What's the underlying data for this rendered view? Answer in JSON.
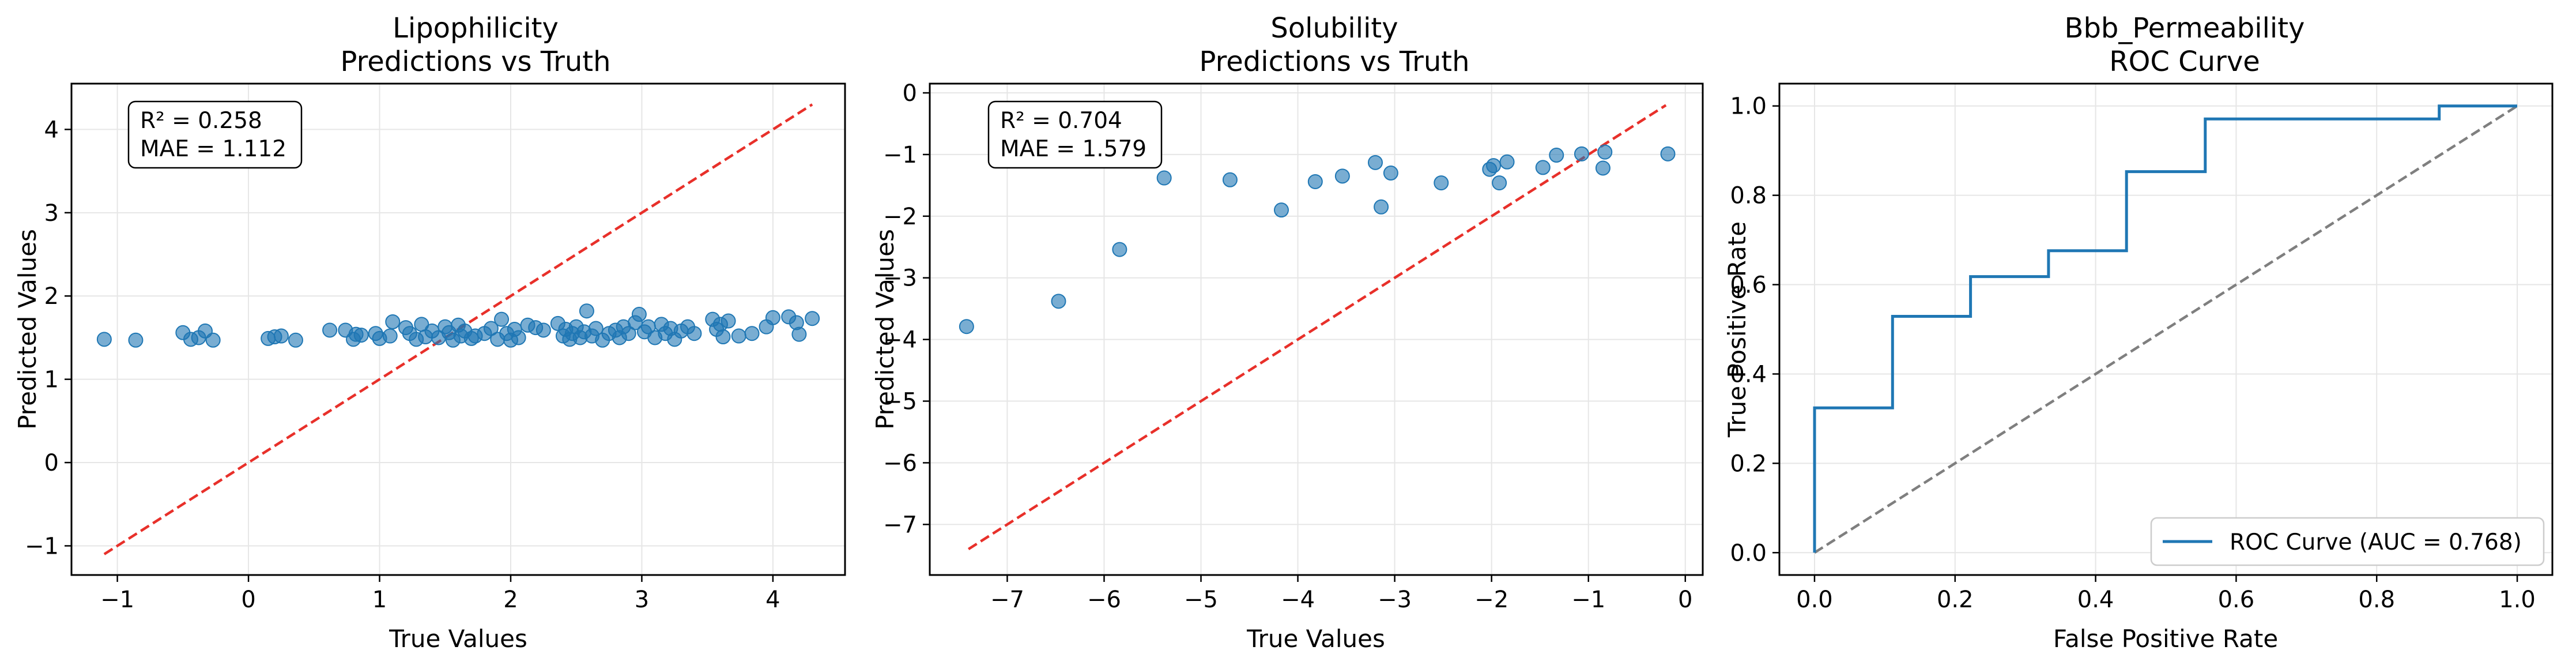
{
  "figure": {
    "panels": [
      {
        "title_line1": "Lipophilicity",
        "title_line2": "Predictions vs Truth",
        "xlabel": "True Values",
        "ylabel": "Predicted Values",
        "stats_line1": "R² = 0.258",
        "stats_line2": "MAE = 1.112"
      },
      {
        "title_line1": "Solubility",
        "title_line2": "Predictions vs Truth",
        "xlabel": "True Values",
        "ylabel": "Predicted Values",
        "stats_line1": "R² = 0.704",
        "stats_line2": "MAE = 1.579"
      },
      {
        "title_line1": "Bbb_Permeability",
        "title_line2": "ROC Curve",
        "xlabel": "False Positive Rate",
        "ylabel": "True Positive Rate",
        "legend_label": "ROC Curve (AUC = 0.768)"
      }
    ]
  },
  "colors": {
    "points": "#1f77b4",
    "identity_line": "#e8302a",
    "roc_line": "#1f77b4",
    "chance_line": "#7f7f7f",
    "grid": "#e6e6e6"
  },
  "chart_data": [
    {
      "type": "scatter",
      "title": "Lipophilicity\nPredictions vs Truth",
      "xlabel": "True Values",
      "ylabel": "Predicted Values",
      "xlim": [
        -1.35,
        4.55
      ],
      "ylim": [
        -1.35,
        4.55
      ],
      "xticks": [
        -1,
        0,
        1,
        2,
        3,
        4
      ],
      "yticks": [
        -1,
        0,
        1,
        2,
        3,
        4
      ],
      "grid": true,
      "annotation": "R² = 0.258\nMAE = 1.112",
      "identity_line": [
        [
          -1.1,
          -1.1
        ],
        [
          4.3,
          4.3
        ]
      ],
      "points": [
        [
          -1.1,
          1.48
        ],
        [
          -0.86,
          1.47
        ],
        [
          -0.5,
          1.56
        ],
        [
          -0.44,
          1.48
        ],
        [
          -0.38,
          1.5
        ],
        [
          -0.33,
          1.58
        ],
        [
          -0.27,
          1.47
        ],
        [
          0.15,
          1.49
        ],
        [
          0.2,
          1.51
        ],
        [
          0.25,
          1.52
        ],
        [
          0.36,
          1.47
        ],
        [
          0.62,
          1.59
        ],
        [
          0.74,
          1.59
        ],
        [
          0.8,
          1.48
        ],
        [
          0.82,
          1.54
        ],
        [
          0.86,
          1.53
        ],
        [
          0.97,
          1.55
        ],
        [
          1.0,
          1.49
        ],
        [
          1.08,
          1.52
        ],
        [
          1.1,
          1.69
        ],
        [
          1.2,
          1.62
        ],
        [
          1.23,
          1.55
        ],
        [
          1.28,
          1.48
        ],
        [
          1.32,
          1.66
        ],
        [
          1.35,
          1.51
        ],
        [
          1.4,
          1.58
        ],
        [
          1.45,
          1.5
        ],
        [
          1.5,
          1.63
        ],
        [
          1.53,
          1.56
        ],
        [
          1.56,
          1.47
        ],
        [
          1.6,
          1.65
        ],
        [
          1.62,
          1.52
        ],
        [
          1.65,
          1.58
        ],
        [
          1.7,
          1.49
        ],
        [
          1.73,
          1.52
        ],
        [
          1.8,
          1.55
        ],
        [
          1.85,
          1.61
        ],
        [
          1.9,
          1.48
        ],
        [
          1.93,
          1.72
        ],
        [
          1.97,
          1.55
        ],
        [
          2.0,
          1.47
        ],
        [
          2.03,
          1.6
        ],
        [
          2.06,
          1.5
        ],
        [
          2.13,
          1.65
        ],
        [
          2.19,
          1.62
        ],
        [
          2.25,
          1.59
        ],
        [
          2.36,
          1.67
        ],
        [
          2.4,
          1.52
        ],
        [
          2.42,
          1.6
        ],
        [
          2.45,
          1.48
        ],
        [
          2.47,
          1.55
        ],
        [
          2.5,
          1.63
        ],
        [
          2.53,
          1.5
        ],
        [
          2.56,
          1.57
        ],
        [
          2.58,
          1.82
        ],
        [
          2.62,
          1.52
        ],
        [
          2.65,
          1.61
        ],
        [
          2.7,
          1.47
        ],
        [
          2.75,
          1.55
        ],
        [
          2.8,
          1.59
        ],
        [
          2.83,
          1.5
        ],
        [
          2.86,
          1.63
        ],
        [
          2.9,
          1.55
        ],
        [
          2.95,
          1.68
        ],
        [
          2.98,
          1.78
        ],
        [
          3.02,
          1.57
        ],
        [
          3.05,
          1.63
        ],
        [
          3.1,
          1.5
        ],
        [
          3.15,
          1.66
        ],
        [
          3.18,
          1.55
        ],
        [
          3.22,
          1.61
        ],
        [
          3.25,
          1.48
        ],
        [
          3.3,
          1.58
        ],
        [
          3.35,
          1.63
        ],
        [
          3.4,
          1.55
        ],
        [
          3.54,
          1.72
        ],
        [
          3.57,
          1.6
        ],
        [
          3.6,
          1.66
        ],
        [
          3.62,
          1.51
        ],
        [
          3.66,
          1.7
        ],
        [
          3.74,
          1.52
        ],
        [
          3.84,
          1.55
        ],
        [
          3.95,
          1.63
        ],
        [
          4.0,
          1.74
        ],
        [
          4.12,
          1.75
        ],
        [
          4.18,
          1.68
        ],
        [
          4.2,
          1.54
        ],
        [
          4.3,
          1.73
        ]
      ]
    },
    {
      "type": "scatter",
      "title": "Solubility\nPredictions vs Truth",
      "xlabel": "True Values",
      "ylabel": "Predicted Values",
      "xlim": [
        -7.8,
        0.18
      ],
      "ylim": [
        -7.82,
        0.15
      ],
      "xticks": [
        -7,
        -6,
        -5,
        -4,
        -3,
        -2,
        -1,
        0
      ],
      "yticks": [
        -7,
        -6,
        -5,
        -4,
        -3,
        -2,
        -1,
        0
      ],
      "grid": true,
      "annotation": "R² = 0.704\nMAE = 1.579",
      "identity_line": [
        [
          -7.4,
          -7.4
        ],
        [
          -0.2,
          -0.2
        ]
      ],
      "points": [
        [
          -7.42,
          -3.79
        ],
        [
          -6.47,
          -3.38
        ],
        [
          -5.84,
          -2.54
        ],
        [
          -5.38,
          -1.38
        ],
        [
          -4.7,
          -1.41
        ],
        [
          -4.17,
          -1.9
        ],
        [
          -3.82,
          -1.44
        ],
        [
          -3.54,
          -1.35
        ],
        [
          -3.2,
          -1.13
        ],
        [
          -3.14,
          -1.85
        ],
        [
          -3.04,
          -1.3
        ],
        [
          -2.52,
          -1.46
        ],
        [
          -2.02,
          -1.24
        ],
        [
          -1.98,
          -1.18
        ],
        [
          -1.92,
          -1.46
        ],
        [
          -1.84,
          -1.12
        ],
        [
          -1.47,
          -1.21
        ],
        [
          -1.33,
          -1.01
        ],
        [
          -1.07,
          -0.99
        ],
        [
          -0.85,
          -1.22
        ],
        [
          -0.83,
          -0.96
        ],
        [
          -0.18,
          -0.99
        ]
      ]
    },
    {
      "type": "line",
      "title": "Bbb_Permeability\nROC Curve",
      "xlabel": "False Positive Rate",
      "ylabel": "True Positive Rate",
      "xlim": [
        -0.05,
        1.05
      ],
      "ylim": [
        -0.05,
        1.05
      ],
      "xticks": [
        0.0,
        0.2,
        0.4,
        0.6,
        0.8,
        1.0
      ],
      "yticks": [
        0.0,
        0.2,
        0.4,
        0.6,
        0.8,
        1.0
      ],
      "grid": true,
      "legend": "lower right",
      "series": [
        {
          "name": "ROC Curve (AUC = 0.768)",
          "x": [
            0,
            0,
            0.111,
            0.111,
            0.222,
            0.222,
            0.333,
            0.333,
            0.444,
            0.444,
            0.556,
            0.556,
            0.889,
            0.889,
            1.0
          ],
          "y": [
            0,
            0.324,
            0.324,
            0.529,
            0.529,
            0.618,
            0.618,
            0.676,
            0.676,
            0.853,
            0.853,
            0.971,
            0.971,
            1.0,
            1.0
          ]
        }
      ],
      "chance_line": [
        [
          0,
          0
        ],
        [
          1,
          1
        ]
      ]
    }
  ]
}
